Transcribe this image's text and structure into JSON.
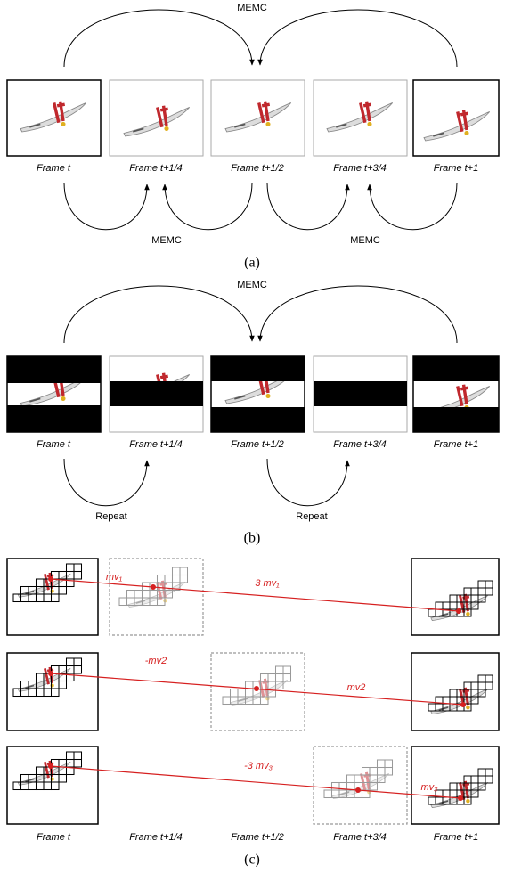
{
  "panel_a": {
    "top_arc_label": "MEMC",
    "frames": [
      "Frame t",
      "Frame t+1/4",
      "Frame t+1/2",
      "Frame t+3/4",
      "Frame t+1"
    ],
    "bottom_arc_labels": [
      "MEMC",
      "MEMC"
    ],
    "caption": "(a)"
  },
  "panel_b": {
    "top_arc_label": "MEMC",
    "frames": [
      "Frame t",
      "Frame t+1/4",
      "Frame t+1/2",
      "Frame t+3/4",
      "Frame t+1"
    ],
    "bottom_arc_labels": [
      "Repeat",
      "Repeat"
    ],
    "caption": "(b)"
  },
  "panel_c": {
    "motion_labels": [
      "mv₁",
      "3 mv₁",
      "-mv2",
      "mv2",
      "-3 mv₃",
      "mv₃"
    ],
    "frames": [
      "Frame t",
      "Frame t+1/4",
      "Frame t+1/2",
      "Frame t+3/4",
      "Frame t+1"
    ],
    "caption": "(c)"
  }
}
